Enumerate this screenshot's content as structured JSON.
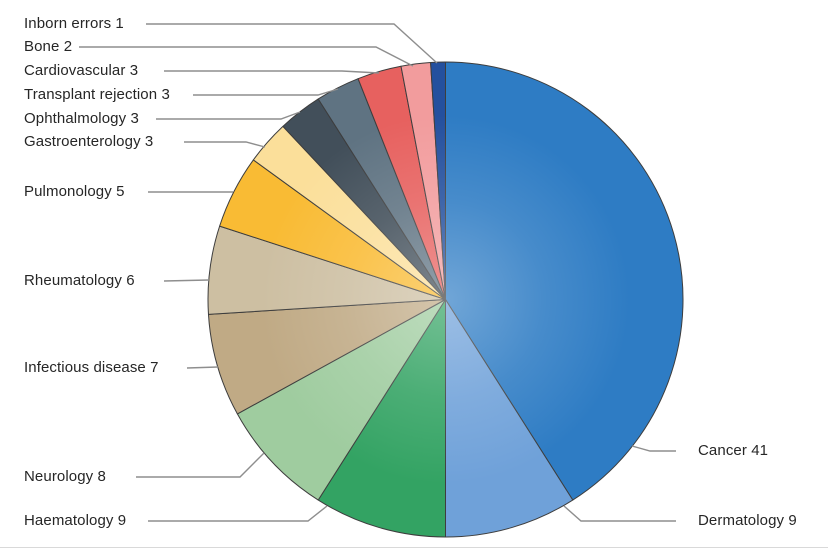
{
  "figure": {
    "background_color": "#ffffff",
    "text_color": "#262626"
  },
  "chart_data": {
    "type": "pie",
    "title": "",
    "total": 100,
    "start_angle_deg": 0,
    "direction": "clockwise",
    "legend_position": "none",
    "labels_style": "leader-lines",
    "stroke_color": "#3d3d3d",
    "leader_line_color": "#8e8e8e",
    "slices": [
      {
        "key": "cancer",
        "label": "Cancer",
        "value": 41,
        "display": "Cancer 41",
        "color": "#2e7cc4",
        "label_side": "right"
      },
      {
        "key": "dermatology",
        "label": "Dermatology",
        "value": 9,
        "display": "Dermatology 9",
        "color": "#6fa1d9",
        "label_side": "right"
      },
      {
        "key": "haematology",
        "label": "Haematology",
        "value": 9,
        "display": "Haematology 9",
        "color": "#33a363",
        "label_side": "left"
      },
      {
        "key": "neurology",
        "label": "Neurology",
        "value": 8,
        "display": "Neurology 8",
        "color": "#9fcc9f",
        "label_side": "left"
      },
      {
        "key": "infectious",
        "label": "Infectious disease",
        "value": 7,
        "display": "Infectious disease 7",
        "color": "#c0aa85",
        "label_side": "left"
      },
      {
        "key": "rheumatology",
        "label": "Rheumatology",
        "value": 6,
        "display": "Rheumatology 6",
        "color": "#cdbfa2",
        "label_side": "left"
      },
      {
        "key": "pulmonology",
        "label": "Pulmonology",
        "value": 5,
        "display": "Pulmonology 5",
        "color": "#f9bb34",
        "label_side": "left"
      },
      {
        "key": "gastroenterology",
        "label": "Gastroenterology",
        "value": 3,
        "display": "Gastroenterology 3",
        "color": "#fbdf9a",
        "label_side": "left"
      },
      {
        "key": "ophthalmology",
        "label": "Ophthalmology",
        "value": 3,
        "display": "Ophthalmology 3",
        "color": "#424f5a",
        "label_side": "left"
      },
      {
        "key": "transplant",
        "label": "Transplant rejection",
        "value": 3,
        "display": "Transplant rejection 3",
        "color": "#5f7382",
        "label_side": "left"
      },
      {
        "key": "cardiovascular",
        "label": "Cardiovascular",
        "value": 3,
        "display": "Cardiovascular 3",
        "color": "#e7615f",
        "label_side": "left"
      },
      {
        "key": "bone",
        "label": "Bone",
        "value": 2,
        "display": "Bone 2",
        "color": "#f29c9d",
        "label_side": "left"
      },
      {
        "key": "inborn",
        "label": "Inborn errors",
        "value": 1,
        "display": "Inborn errors 1",
        "color": "#24509e",
        "label_side": "left"
      }
    ]
  }
}
